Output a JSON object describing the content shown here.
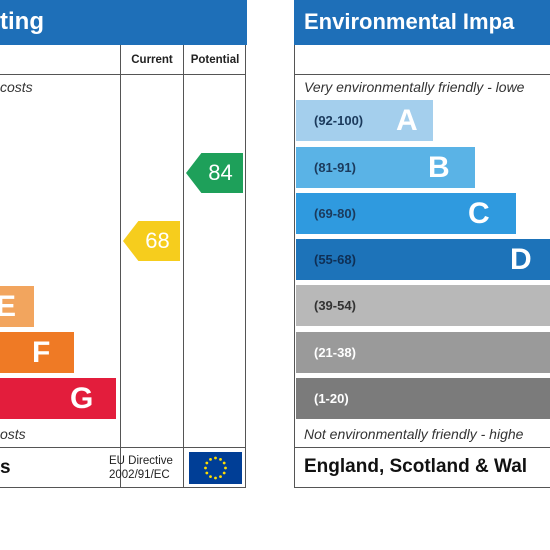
{
  "left_panel": {
    "title_fragment": "ting",
    "columns": {
      "current": "Current",
      "potential": "Potential"
    },
    "top_note": "costs",
    "bottom_note": "osts",
    "bands": [
      {
        "letter": "E",
        "color": "#f2a55e"
      },
      {
        "letter": "F",
        "color": "#ef7a25"
      },
      {
        "letter": "G",
        "color": "#e31d3c"
      }
    ],
    "current_rating": {
      "value": "68",
      "color": "#f6cd1d"
    },
    "potential_rating": {
      "value": "84",
      "color": "#1ea05a"
    },
    "footer_fragment": "s",
    "eu_directive": {
      "line1": "EU Directive",
      "line2": "2002/91/EC"
    }
  },
  "right_panel": {
    "title": "Environmental Impa",
    "top_note": "Very environmentally friendly - lowe",
    "bottom_note": "Not environmentally friendly - highe",
    "bands": [
      {
        "range": "(92-100)",
        "letter": "A",
        "color": "#a4cfed"
      },
      {
        "range": "(81-91)",
        "letter": "B",
        "color": "#5ab3e6"
      },
      {
        "range": "(69-80)",
        "letter": "C",
        "color": "#2f9adf"
      },
      {
        "range": "(55-68)",
        "letter": "D",
        "color": "#1d73b9"
      },
      {
        "range": "(39-54)",
        "letter": "",
        "color": "#b8b8b8"
      },
      {
        "range": "(21-38)",
        "letter": "",
        "color": "#9a9a9a"
      },
      {
        "range": "(1-20)",
        "letter": "",
        "color": "#7b7b7b"
      }
    ],
    "footer": "England, Scotland & Wal"
  }
}
